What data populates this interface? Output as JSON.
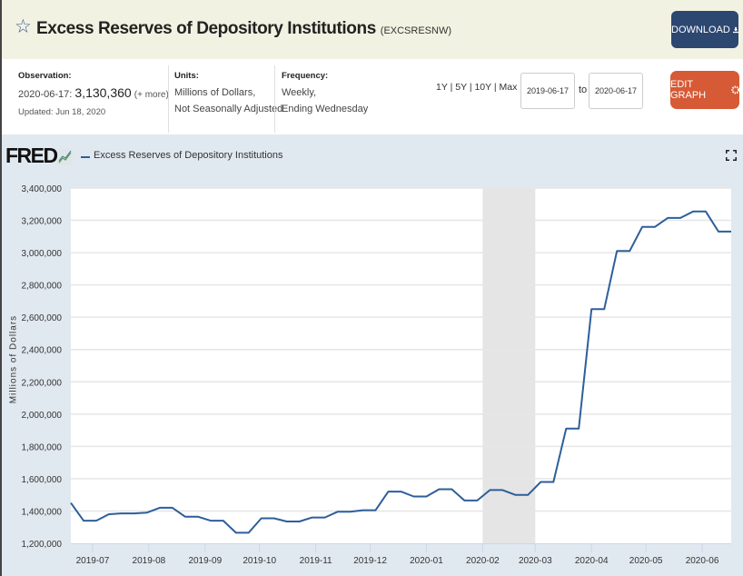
{
  "header": {
    "title": "Excess Reserves of Depository Institutions",
    "series_id": "(EXCSRESNW)",
    "download_label": "DOWNLOAD",
    "edit_graph_label": "EDIT GRAPH"
  },
  "meta": {
    "observation_label": "Observation:",
    "observation_date": "2020-06-17:",
    "observation_value": "3,130,360",
    "observation_more": "(+ more)",
    "updated": "Updated: Jun 18, 2020",
    "units_label": "Units:",
    "units_line1": "Millions of Dollars,",
    "units_line2": "Not Seasonally Adjusted",
    "frequency_label": "Frequency:",
    "frequency_line1": "Weekly,",
    "frequency_line2": "Ending Wednesday"
  },
  "range": {
    "options": [
      "1Y",
      "5Y",
      "10Y",
      "Max"
    ],
    "separator": "|",
    "start_date": "2019-06-17",
    "to_label": "to",
    "end_date": "2020-06-17"
  },
  "colors": {
    "line": "#2d5e9b",
    "recession": "#e5e5e5",
    "download_bg": "#2c4770",
    "edit_bg": "#d65a35"
  },
  "chart_data": {
    "type": "line",
    "title": "",
    "brand": "FRED",
    "legend": [
      "Excess Reserves of Depository Institutions"
    ],
    "legend_position": "top-left",
    "xlabel": "",
    "ylabel": "Millions of Dollars",
    "ylim": [
      1200000,
      3400000
    ],
    "yticks": [
      1200000,
      1400000,
      1600000,
      1800000,
      2000000,
      2200000,
      2400000,
      2600000,
      2800000,
      3000000,
      3200000,
      3400000
    ],
    "ytick_labels": [
      "1,200,000",
      "1,400,000",
      "1,600,000",
      "1,800,000",
      "2,000,000",
      "2,200,000",
      "2,400,000",
      "2,600,000",
      "2,800,000",
      "3,000,000",
      "3,200,000",
      "3,400,000"
    ],
    "xlim": [
      "2019-06-19",
      "2020-06-17"
    ],
    "xticks": [
      "2019-07-01",
      "2019-08-01",
      "2019-09-01",
      "2019-10-01",
      "2019-11-01",
      "2019-12-01",
      "2020-01-01",
      "2020-02-01",
      "2020-03-01",
      "2020-04-01",
      "2020-05-01",
      "2020-06-01"
    ],
    "xtick_labels": [
      "2019-07",
      "2019-08",
      "2019-09",
      "2019-10",
      "2019-11",
      "2019-12",
      "2020-01",
      "2020-02",
      "2020-03",
      "2020-04",
      "2020-05",
      "2020-06"
    ],
    "grid": true,
    "recession_shading": [
      [
        "2020-02-01",
        "2020-03-01"
      ]
    ],
    "series": [
      {
        "name": "Excess Reserves of Depository Institutions",
        "x": [
          "2019-06-19",
          "2019-06-26",
          "2019-07-03",
          "2019-07-10",
          "2019-07-17",
          "2019-07-24",
          "2019-07-31",
          "2019-08-07",
          "2019-08-14",
          "2019-08-21",
          "2019-08-28",
          "2019-09-04",
          "2019-09-11",
          "2019-09-18",
          "2019-09-25",
          "2019-10-02",
          "2019-10-09",
          "2019-10-16",
          "2019-10-23",
          "2019-10-30",
          "2019-11-06",
          "2019-11-13",
          "2019-11-20",
          "2019-11-27",
          "2019-12-04",
          "2019-12-11",
          "2019-12-18",
          "2019-12-25",
          "2020-01-01",
          "2020-01-08",
          "2020-01-15",
          "2020-01-22",
          "2020-01-29",
          "2020-02-05",
          "2020-02-12",
          "2020-02-19",
          "2020-02-26",
          "2020-03-04",
          "2020-03-11",
          "2020-03-18",
          "2020-03-25",
          "2020-04-01",
          "2020-04-08",
          "2020-04-15",
          "2020-04-22",
          "2020-04-29",
          "2020-05-06",
          "2020-05-13",
          "2020-05-20",
          "2020-05-27",
          "2020-06-03",
          "2020-06-10",
          "2020-06-17"
        ],
        "values": [
          1450000,
          1340000,
          1340000,
          1380000,
          1385000,
          1385000,
          1390000,
          1420000,
          1420000,
          1365000,
          1365000,
          1340000,
          1340000,
          1265000,
          1265000,
          1355000,
          1355000,
          1335000,
          1335000,
          1360000,
          1360000,
          1395000,
          1395000,
          1405000,
          1405000,
          1520000,
          1520000,
          1490000,
          1490000,
          1535000,
          1535000,
          1465000,
          1465000,
          1530000,
          1530000,
          1500000,
          1500000,
          1580000,
          1580000,
          1910000,
          1910000,
          2650000,
          2650000,
          3010000,
          3010000,
          3160000,
          3160000,
          3215000,
          3215000,
          3255000,
          3255000,
          3130360,
          3130360
        ]
      }
    ]
  }
}
